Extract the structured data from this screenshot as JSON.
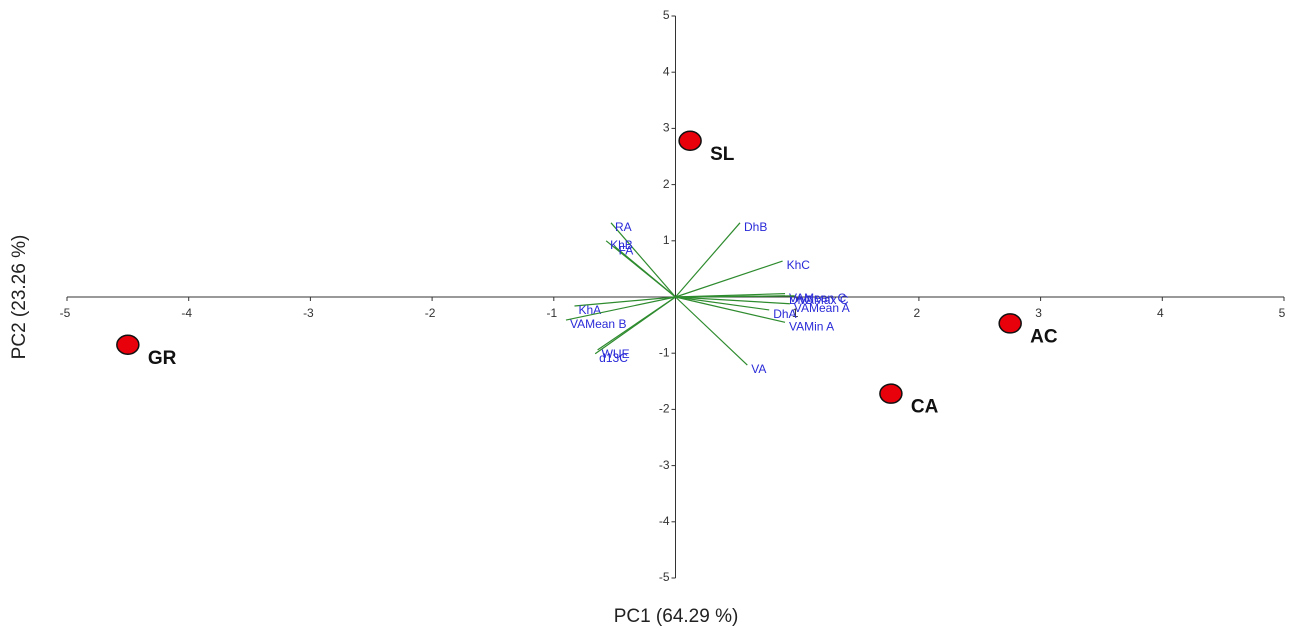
{
  "chart_data": {
    "type": "biplot",
    "xlabel": "PC1 (64.29 %)",
    "ylabel": "PC2 (23.26 %)",
    "xlim": [
      -5,
      5
    ],
    "ylim": [
      -5,
      5
    ],
    "xticks": [
      -5,
      -4,
      -3,
      -2,
      -1,
      1,
      2,
      3,
      4,
      5
    ],
    "yticks": [
      5,
      4,
      3,
      2,
      1,
      -1,
      -2,
      -3,
      -4,
      -5
    ],
    "point_color": "#e8000b",
    "loading_color": "#2e8b2e",
    "loading_label_color": "#2a2ad8",
    "points": [
      {
        "label": "SL",
        "x": 0.12,
        "y": 2.78
      },
      {
        "label": "GR",
        "x": -4.5,
        "y": -0.85
      },
      {
        "label": "AC",
        "x": 2.75,
        "y": -0.47
      },
      {
        "label": "CA",
        "x": 1.77,
        "y": -1.72
      }
    ],
    "loadings": [
      {
        "label": "RA",
        "x": -0.53,
        "y": 1.32
      },
      {
        "label": "KhB",
        "x": -0.57,
        "y": 1.0
      },
      {
        "label": "FA",
        "x": -0.5,
        "y": 0.9
      },
      {
        "label": "DhB",
        "x": 0.53,
        "y": 1.32
      },
      {
        "label": "KhC",
        "x": 0.88,
        "y": 0.64
      },
      {
        "label": "VAMean C",
        "x": 0.9,
        "y": 0.06
      },
      {
        "label": "DhC",
        "x": 0.9,
        "y": 0.02
      },
      {
        "label": "VAMax C",
        "x": 0.98,
        "y": 0.02
      },
      {
        "label": "VAMean A",
        "x": 0.94,
        "y": -0.12
      },
      {
        "label": "DhA",
        "x": 0.77,
        "y": -0.23
      },
      {
        "label": "VAMin A",
        "x": 0.9,
        "y": -0.45
      },
      {
        "label": "VA",
        "x": 0.59,
        "y": -1.21
      },
      {
        "label": "KhA",
        "x": -0.83,
        "y": -0.16
      },
      {
        "label": "VAMean B",
        "x": -0.9,
        "y": -0.41
      },
      {
        "label": "d13C",
        "x": -0.66,
        "y": -1.01
      },
      {
        "label": "WUE",
        "x": -0.64,
        "y": -0.94
      }
    ]
  }
}
